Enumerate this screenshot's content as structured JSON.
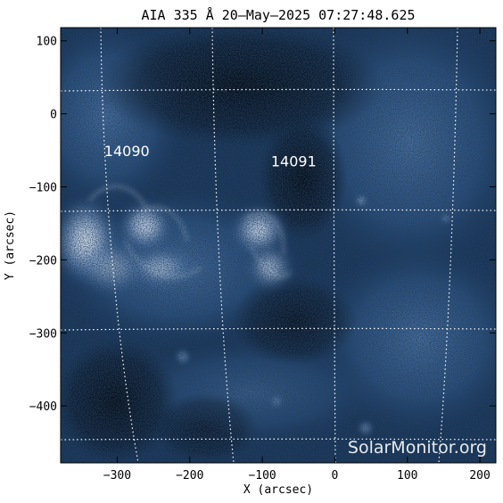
{
  "figure": {
    "title": "AIA 335 Å 20—May—2025 07:27:48.625",
    "x_axis_label": "X (arcsec)",
    "y_axis_label": "Y (arcsec)",
    "x_ticks": [
      "−300",
      "−200",
      "−100",
      "0",
      "100",
      "200"
    ],
    "y_ticks": [
      "100",
      "0",
      "−100",
      "−200",
      "−300",
      "−400"
    ],
    "x_tick_values": [
      -300,
      -200,
      -100,
      0,
      100,
      200
    ],
    "y_tick_values": [
      100,
      0,
      -100,
      -200,
      -300,
      -400
    ],
    "x_range": [
      -378,
      222
    ],
    "y_range": [
      -478,
      118
    ],
    "watermark": "SolarMonitor.org",
    "active_regions": [
      {
        "label": "14090",
        "x": -318,
        "y": -58
      },
      {
        "label": "14091",
        "x": -88,
        "y": -72
      }
    ],
    "colors": {
      "background": "#ffffff",
      "axis": "#000000",
      "image_dark": "#02060d",
      "image_mid": "#2e5a90",
      "image_bright": "#e8f0fb",
      "grid": "#ffffff"
    }
  }
}
